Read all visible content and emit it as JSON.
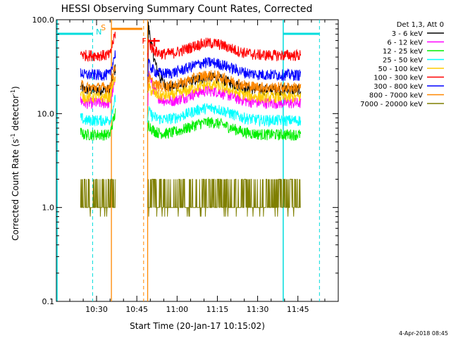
{
  "chart_data": {
    "type": "line",
    "title": "HESSI Observing Summary Count Rates, Corrected",
    "xlabel": "Start Time (20-Jan-17 10:15:02)",
    "ylabel_main": "Corrected Count Rate (s",
    "ylabel_sup": "-1",
    "ylabel_mid": " detector",
    "ylabel_sup2": "-1",
    "ylabel_end": ")",
    "y_scale": "log",
    "ylim": [
      0.1,
      100
    ],
    "y_ticks": [
      "100.0",
      "10.0",
      "1.0",
      "0.1"
    ],
    "x_ticks": [
      "10:30",
      "10:45",
      "11:00",
      "11:15",
      "11:30",
      "11:45"
    ],
    "x_unit": "minutes after 10:15:02",
    "xlim": [
      0,
      105
    ],
    "legend_title": "Det 1,3, Att 0",
    "legend_placement": "right",
    "timestamp": "4-Apr-2018 08:45",
    "segments": [
      {
        "start": 9,
        "end": 22
      },
      {
        "start": 34,
        "end": 91
      }
    ],
    "series": [
      {
        "name": "3 - 6 keV",
        "color": "#000000",
        "level": 18,
        "spike": 90
      },
      {
        "name": "6 - 12 keV",
        "color": "#ff00ff",
        "level": 13,
        "spike": 30
      },
      {
        "name": "12 - 25 keV",
        "color": "#00ee00",
        "level": 6,
        "spike": 8
      },
      {
        "name": "25 - 50 keV",
        "color": "#00ffff",
        "level": 8.5,
        "spike": 11
      },
      {
        "name": "50 - 100 keV",
        "color": "#ffcc00",
        "level": 15,
        "spike": 20
      },
      {
        "name": "100 - 300 keV",
        "color": "#ff0000",
        "level": 42,
        "spike": 60
      },
      {
        "name": "300 - 800 keV",
        "color": "#0000ff",
        "level": 26,
        "spike": 35
      },
      {
        "name": "800 - 7000 keV",
        "color": "#ff8800",
        "level": 19,
        "spike": 25
      },
      {
        "name": "7000 - 20000 keV",
        "color": "#7f7f00",
        "level": 1,
        "spike": 2
      }
    ],
    "flags": [
      {
        "label": "S",
        "color": "#ff8800"
      },
      {
        "label": "N",
        "color": "#00dddd"
      },
      {
        "label": "F",
        "color": "#ff0000"
      }
    ]
  }
}
